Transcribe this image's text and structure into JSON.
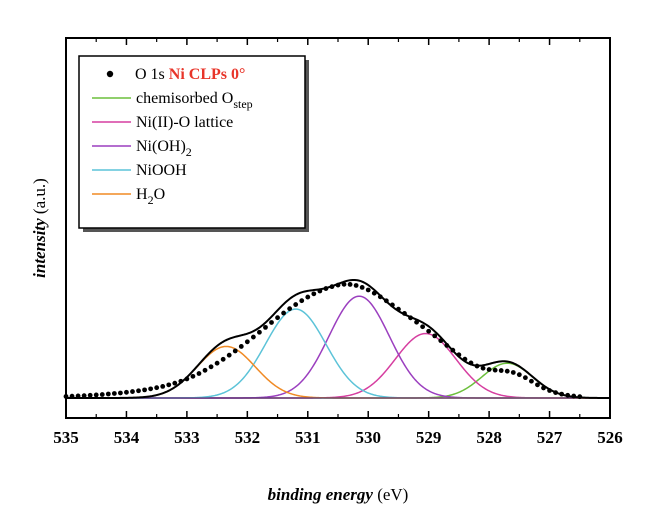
{
  "chart_data": {
    "type": "line",
    "xlabel_italic": "binding energy",
    "xlabel_unit": " (eV)",
    "ylabel": "intensity",
    "ylabel_unit": " (a.u.)",
    "xlim": [
      535,
      526
    ],
    "x_reversed": true,
    "xticks": [
      535,
      534,
      533,
      532,
      531,
      530,
      529,
      528,
      527,
      526
    ],
    "ylim": [
      0,
      100
    ],
    "y_tick_labels_shown": false,
    "grid": false,
    "legend_position": "top-left",
    "legend": {
      "data_prefix": "O 1s",
      "data_highlight": "Ni CLPs 0°",
      "highlight_color": "#e8352a",
      "entries": [
        {
          "key": "chemisorbed",
          "text": "chemisorbed O",
          "sub": "step",
          "color": "#6cbf3c"
        },
        {
          "key": "lattice",
          "text": "Ni(II)-O lattice",
          "sub": "",
          "color": "#d63ea0"
        },
        {
          "key": "hydroxide",
          "text": "Ni(OH)",
          "sub": "2",
          "color": "#9b3fbf"
        },
        {
          "key": "niooh",
          "text": "NiOOH",
          "sub": "",
          "color": "#5cc3d8"
        },
        {
          "key": "water",
          "text": "H",
          "sub": "2",
          "suffix": "O",
          "color": "#f08a24"
        }
      ]
    },
    "background": {
      "left": 0,
      "right": 0
    },
    "components": [
      {
        "key": "chemisorbed",
        "color": "#6cbf3c",
        "center": 527.7,
        "amplitude": 27,
        "sigma": 0.42
      },
      {
        "key": "lattice",
        "color": "#d63ea0",
        "center": 529.05,
        "amplitude": 50,
        "sigma": 0.5
      },
      {
        "key": "hydroxide",
        "color": "#9b3fbf",
        "center": 530.15,
        "amplitude": 79,
        "sigma": 0.5
      },
      {
        "key": "niooh",
        "color": "#5cc3d8",
        "center": 531.2,
        "amplitude": 69,
        "sigma": 0.5
      },
      {
        "key": "water",
        "color": "#f08a24",
        "center": 532.35,
        "amplitude": 40,
        "sigma": 0.48
      }
    ],
    "envelope_color": "#000000",
    "data_points": [
      [
        535.0,
        1.2
      ],
      [
        534.9,
        1.4
      ],
      [
        534.8,
        1.6
      ],
      [
        534.7,
        1.8
      ],
      [
        534.6,
        2.1
      ],
      [
        534.5,
        2.4
      ],
      [
        534.4,
        2.7
      ],
      [
        534.3,
        3.1
      ],
      [
        534.2,
        3.5
      ],
      [
        534.1,
        3.9
      ],
      [
        534.0,
        4.4
      ],
      [
        533.9,
        5.0
      ],
      [
        533.8,
        5.6
      ],
      [
        533.7,
        6.3
      ],
      [
        533.6,
        7.1
      ],
      [
        533.5,
        8.0
      ],
      [
        533.4,
        9.0
      ],
      [
        533.3,
        10.2
      ],
      [
        533.2,
        11.5
      ],
      [
        533.1,
        13.0
      ],
      [
        533.0,
        14.8
      ],
      [
        532.9,
        16.8
      ],
      [
        532.8,
        19.0
      ],
      [
        532.7,
        21.5
      ],
      [
        532.6,
        24.2
      ],
      [
        532.5,
        27.0
      ],
      [
        532.4,
        30.0
      ],
      [
        532.3,
        33.2
      ],
      [
        532.2,
        36.5
      ],
      [
        532.1,
        40.0
      ],
      [
        532.0,
        43.6
      ],
      [
        531.9,
        47.3
      ],
      [
        531.8,
        51.0
      ],
      [
        531.7,
        54.8
      ],
      [
        531.6,
        58.6
      ],
      [
        531.5,
        62.3
      ],
      [
        531.4,
        65.9
      ],
      [
        531.3,
        69.3
      ],
      [
        531.2,
        72.5
      ],
      [
        531.1,
        75.5
      ],
      [
        531.0,
        78.3
      ],
      [
        530.9,
        80.8
      ],
      [
        530.8,
        83.0
      ],
      [
        530.7,
        84.9
      ],
      [
        530.6,
        86.4
      ],
      [
        530.5,
        87.6
      ],
      [
        530.4,
        88.2
      ],
      [
        530.3,
        88.1
      ],
      [
        530.2,
        87.3
      ],
      [
        530.1,
        85.8
      ],
      [
        530.0,
        83.8
      ],
      [
        529.9,
        81.3
      ],
      [
        529.8,
        78.5
      ],
      [
        529.7,
        75.4
      ],
      [
        529.6,
        72.2
      ],
      [
        529.5,
        68.9
      ],
      [
        529.4,
        65.6
      ],
      [
        529.3,
        62.2
      ],
      [
        529.2,
        58.8
      ],
      [
        529.1,
        55.3
      ],
      [
        529.0,
        51.8
      ],
      [
        528.9,
        48.2
      ],
      [
        528.8,
        44.5
      ],
      [
        528.7,
        40.8
      ],
      [
        528.6,
        37.1
      ],
      [
        528.5,
        33.5
      ],
      [
        528.4,
        30.1
      ],
      [
        528.3,
        27.2
      ],
      [
        528.2,
        24.8
      ],
      [
        528.1,
        23.1
      ],
      [
        528.0,
        22.1
      ],
      [
        527.9,
        21.6
      ],
      [
        527.8,
        21.3
      ],
      [
        527.7,
        20.8
      ],
      [
        527.6,
        19.8
      ],
      [
        527.5,
        18.1
      ],
      [
        527.4,
        15.8
      ],
      [
        527.3,
        13.0
      ],
      [
        527.2,
        10.2
      ],
      [
        527.1,
        7.8
      ],
      [
        527.0,
        5.8
      ],
      [
        526.9,
        4.2
      ],
      [
        526.8,
        3.0
      ],
      [
        526.7,
        2.1
      ],
      [
        526.6,
        1.5
      ],
      [
        526.5,
        1.0
      ]
    ]
  }
}
